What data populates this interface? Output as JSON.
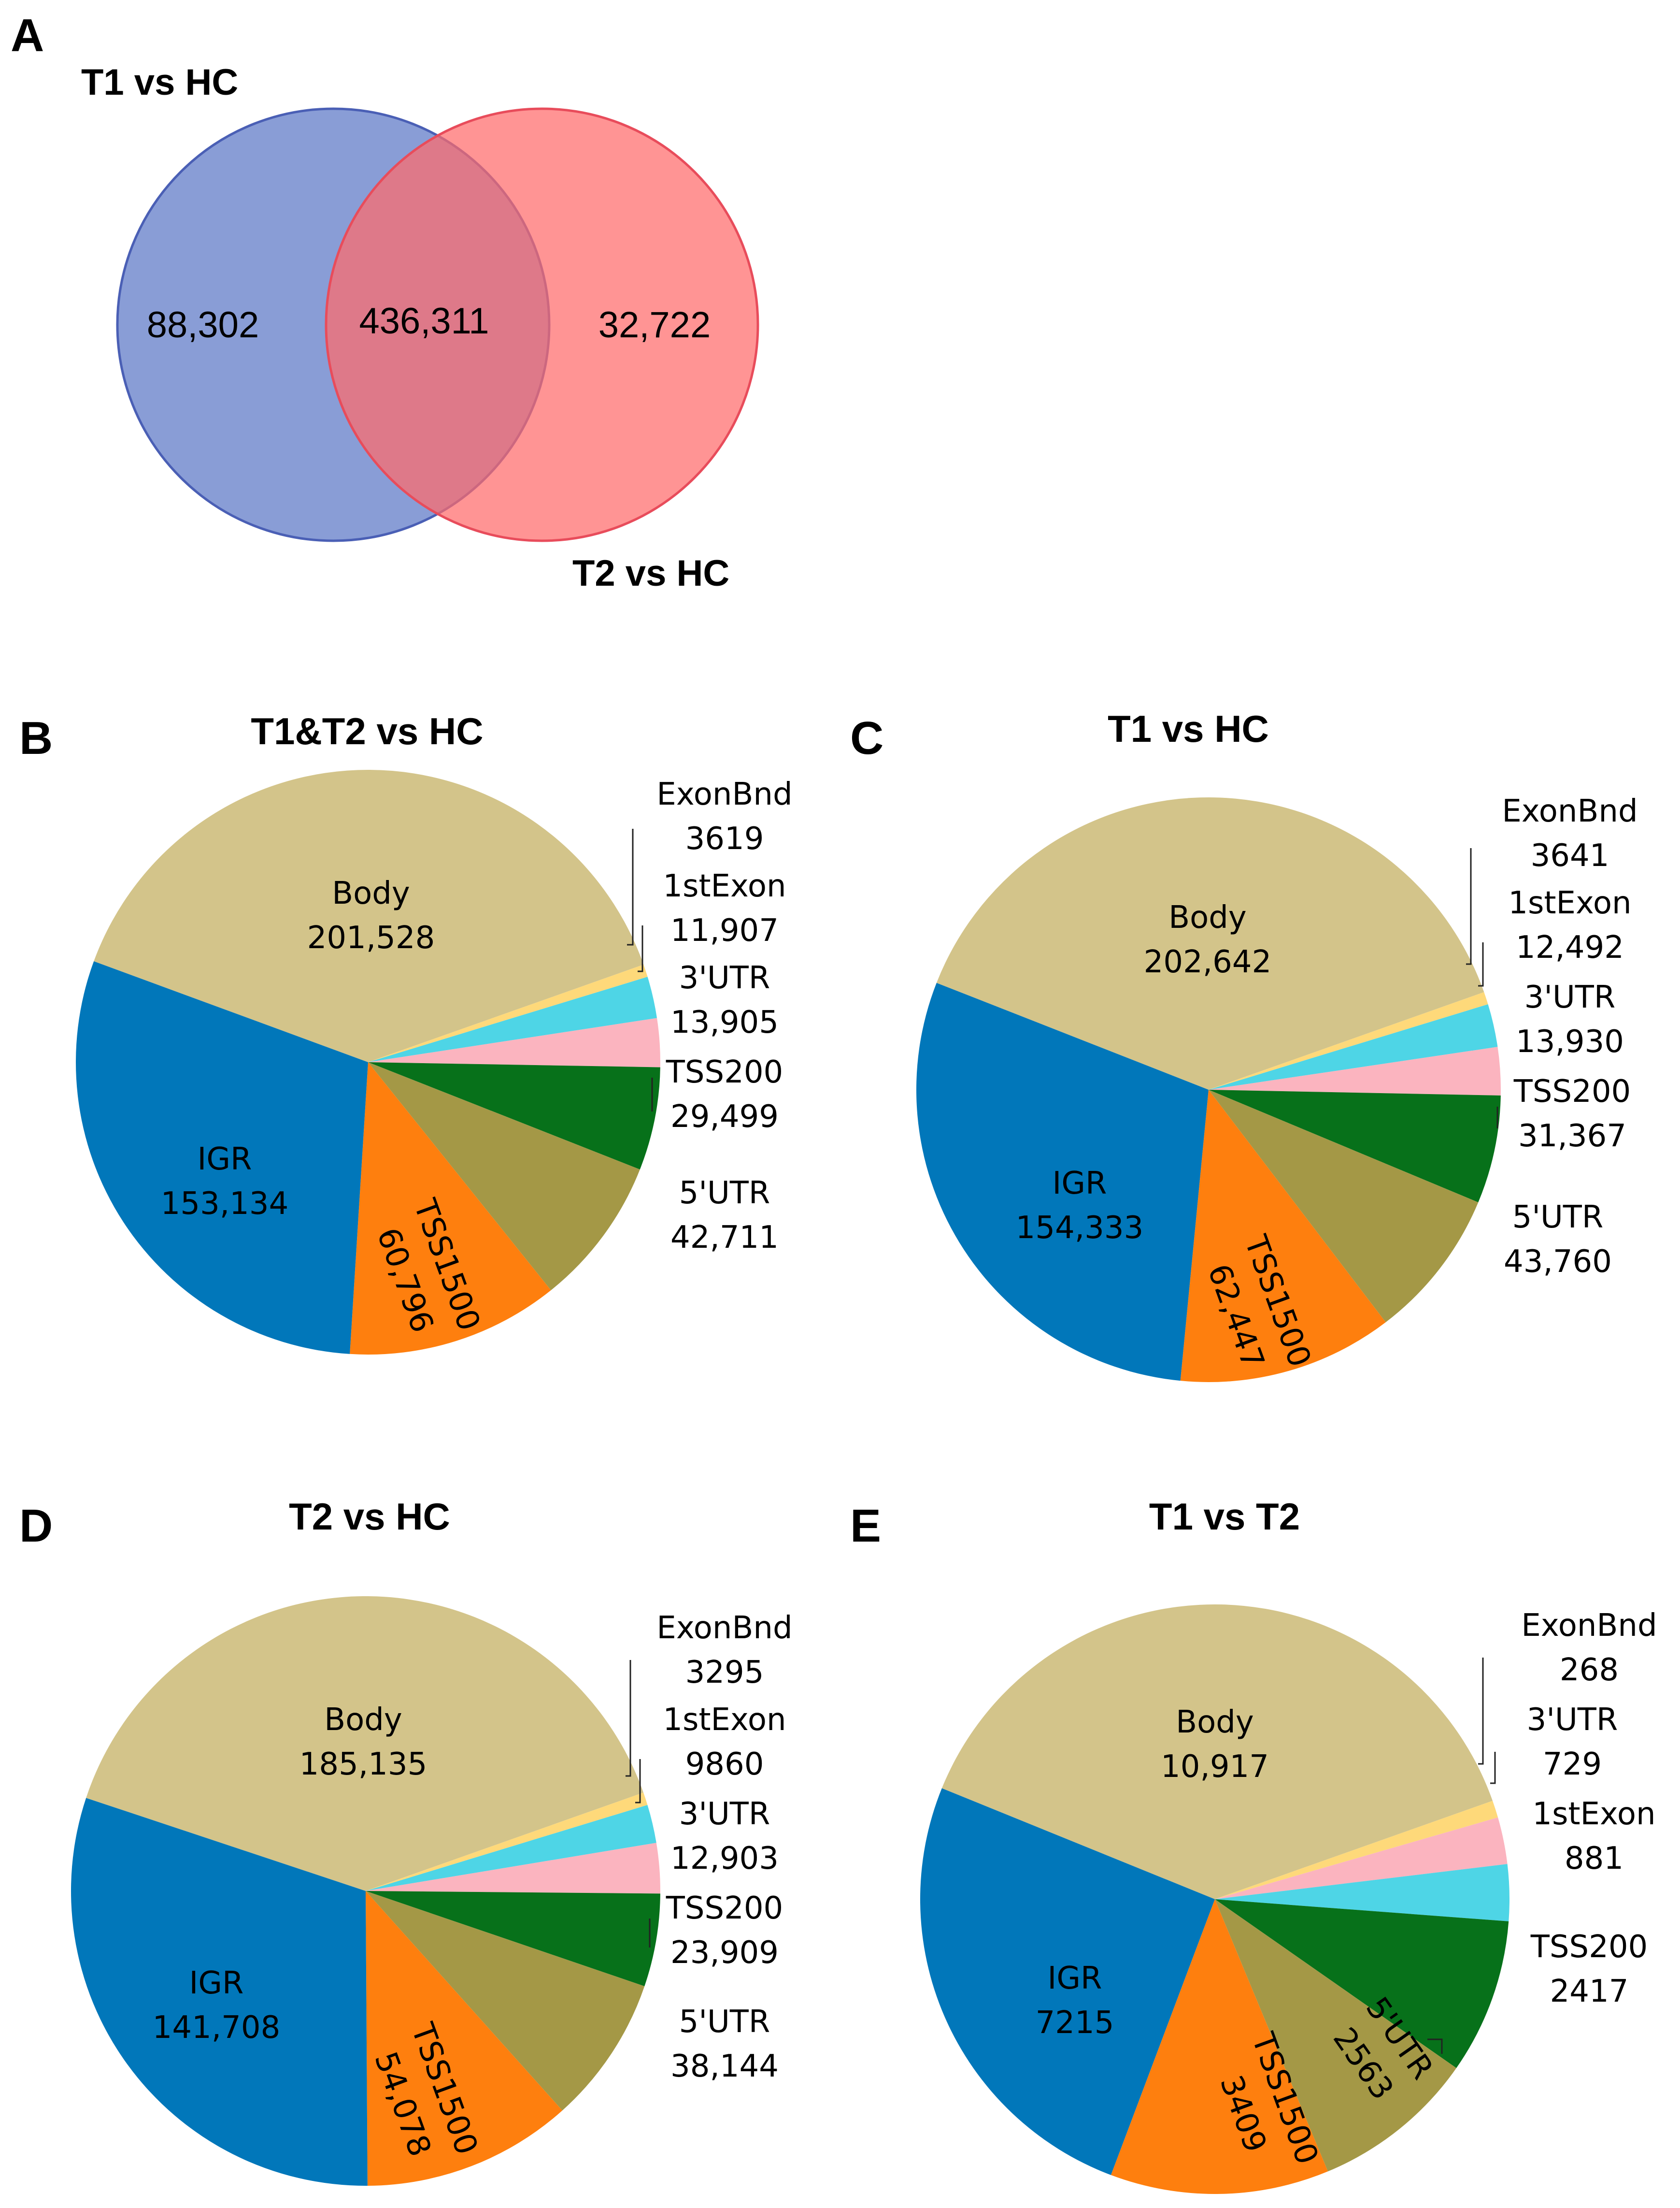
{
  "venn": {
    "panel": "A",
    "set_a": {
      "label": "T1 vs HC",
      "only": "88,302",
      "color": "#6f88cd"
    },
    "set_b": {
      "label": "T2 vs HC",
      "only": "32,722",
      "color": "#ff6b6b"
    },
    "intersection": "436,311"
  },
  "chart_data": [
    {
      "panel": "B",
      "type": "pie",
      "title": "T1&T2 vs HC",
      "slices": [
        {
          "name": "Body",
          "value": 201528,
          "text": "201,528"
        },
        {
          "name": "ExonBnd",
          "value": 3619,
          "text": "3619"
        },
        {
          "name": "1stExon",
          "value": 11907,
          "text": "11,907"
        },
        {
          "name": "3'UTR",
          "value": 13905,
          "text": "13,905"
        },
        {
          "name": "TSS200",
          "value": 29499,
          "text": "29,499"
        },
        {
          "name": "5'UTR",
          "value": 42711,
          "text": "42,711"
        },
        {
          "name": "TSS1500",
          "value": 60796,
          "text": "60,796"
        },
        {
          "name": "IGR",
          "value": 153134,
          "text": "153,134"
        }
      ]
    },
    {
      "panel": "C",
      "type": "pie",
      "title": "T1 vs HC",
      "slices": [
        {
          "name": "Body",
          "value": 202642,
          "text": "202,642"
        },
        {
          "name": "ExonBnd",
          "value": 3641,
          "text": "3641"
        },
        {
          "name": "1stExon",
          "value": 12492,
          "text": "12,492"
        },
        {
          "name": "3'UTR",
          "value": 13930,
          "text": "13,930"
        },
        {
          "name": "TSS200",
          "value": 31367,
          "text": "31,367"
        },
        {
          "name": "5'UTR",
          "value": 43760,
          "text": "43,760"
        },
        {
          "name": "TSS1500",
          "value": 62447,
          "text": "62,447"
        },
        {
          "name": "IGR",
          "value": 154333,
          "text": "154,333"
        }
      ]
    },
    {
      "panel": "D",
      "type": "pie",
      "title": "T2 vs HC",
      "slices": [
        {
          "name": "Body",
          "value": 185135,
          "text": "185,135"
        },
        {
          "name": "ExonBnd",
          "value": 3295,
          "text": "3295"
        },
        {
          "name": "1stExon",
          "value": 9860,
          "text": "9860"
        },
        {
          "name": "3'UTR",
          "value": 12903,
          "text": "12,903"
        },
        {
          "name": "TSS200",
          "value": 23909,
          "text": "23,909"
        },
        {
          "name": "5'UTR",
          "value": 38144,
          "text": "38,144"
        },
        {
          "name": "TSS1500",
          "value": 54078,
          "text": "54,078"
        },
        {
          "name": "IGR",
          "value": 141708,
          "text": "141,708"
        }
      ]
    },
    {
      "panel": "E",
      "type": "pie",
      "title": "T1 vs T2",
      "slices": [
        {
          "name": "Body",
          "value": 10917,
          "text": "10,917"
        },
        {
          "name": "ExonBnd",
          "value": 268,
          "text": "268"
        },
        {
          "name": "3'UTR",
          "value": 729,
          "text": "729"
        },
        {
          "name": "1stExon",
          "value": 881,
          "text": "881"
        },
        {
          "name": "TSS200",
          "value": 2417,
          "text": "2417"
        },
        {
          "name": "5'UTR",
          "value": 2563,
          "text": "2563"
        },
        {
          "name": "TSS1500",
          "value": 3409,
          "text": "3409"
        },
        {
          "name": "IGR",
          "value": 7215,
          "text": "7215"
        }
      ]
    }
  ],
  "colors": {
    "Body": "#d3c48a",
    "ExonBnd": "#fed97a",
    "1stExon": "#4ed5e6",
    "3'UTR": "#fbb4bf",
    "TSS200": "#07711a",
    "5'UTR": "#a49846",
    "TSS1500": "#fe7f0e",
    "IGR": "#0177ba"
  }
}
